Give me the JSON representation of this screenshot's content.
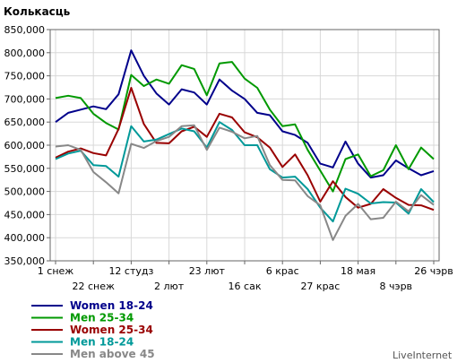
{
  "chart_data": {
    "type": "line",
    "title": "Колькасць",
    "ylim": [
      350000,
      850000
    ],
    "yticks": [
      "350,000",
      "400,000",
      "450,000",
      "500,000",
      "550,000",
      "600,000",
      "650,000",
      "700,000",
      "750,000",
      "800,000",
      "850,000"
    ],
    "x_labels_row1": [
      "1 снеж",
      "12 студз",
      "23 лют",
      "6 крас",
      "18 мая",
      "26 чэрв"
    ],
    "x_labels_row2": [
      "22 снеж",
      "2 лют",
      "16 сак",
      "27 крас",
      "8 чэрв"
    ],
    "grid": true,
    "legend_position": "bottom-left",
    "series": [
      {
        "name": "Women 18-24",
        "color": "#00008b",
        "values": [
          650000,
          670000,
          677000,
          684000,
          678000,
          710000,
          805000,
          750000,
          712000,
          688000,
          721000,
          714000,
          688000,
          742000,
          718000,
          700000,
          670000,
          665000,
          630000,
          622000,
          605000,
          560000,
          552000,
          608000,
          560000,
          530000,
          535000,
          567000,
          550000,
          535000,
          544000
        ]
      },
      {
        "name": "Men 25-34",
        "color": "#009900",
        "values": [
          702000,
          707000,
          702000,
          668000,
          648000,
          634000,
          752000,
          728000,
          742000,
          733000,
          773000,
          765000,
          708000,
          777000,
          780000,
          744000,
          724000,
          677000,
          641000,
          645000,
          590000,
          545000,
          500000,
          570000,
          580000,
          533000,
          546000,
          600000,
          548000,
          595000,
          570000
        ]
      },
      {
        "name": "Women 25-34",
        "color": "#990000",
        "values": [
          573000,
          586000,
          593000,
          583000,
          578000,
          635000,
          724000,
          646000,
          605000,
          604000,
          630000,
          640000,
          618000,
          668000,
          660000,
          628000,
          617000,
          595000,
          553000,
          580000,
          535000,
          478000,
          522000,
          488000,
          465000,
          473000,
          505000,
          486000,
          471000,
          470000,
          460000
        ]
      },
      {
        "name": "Men 18-24",
        "color": "#009999",
        "values": [
          570000,
          582000,
          588000,
          557000,
          555000,
          532000,
          641000,
          608000,
          612000,
          624000,
          636000,
          630000,
          595000,
          650000,
          633000,
          600000,
          600000,
          548000,
          530000,
          532000,
          505000,
          465000,
          435000,
          506000,
          495000,
          474000,
          477000,
          476000,
          452000,
          505000,
          477000
        ]
      },
      {
        "name": "Men above 45",
        "color": "#888888",
        "values": [
          597000,
          600000,
          590000,
          542000,
          520000,
          496000,
          603000,
          594000,
          609000,
          618000,
          641000,
          643000,
          590000,
          638000,
          629000,
          615000,
          620000,
          557000,
          525000,
          524000,
          490000,
          470000,
          395000,
          447000,
          473000,
          440000,
          443000,
          478000,
          457000,
          492000,
          471000
        ]
      }
    ]
  },
  "branding": {
    "label": "LiveInternet"
  }
}
